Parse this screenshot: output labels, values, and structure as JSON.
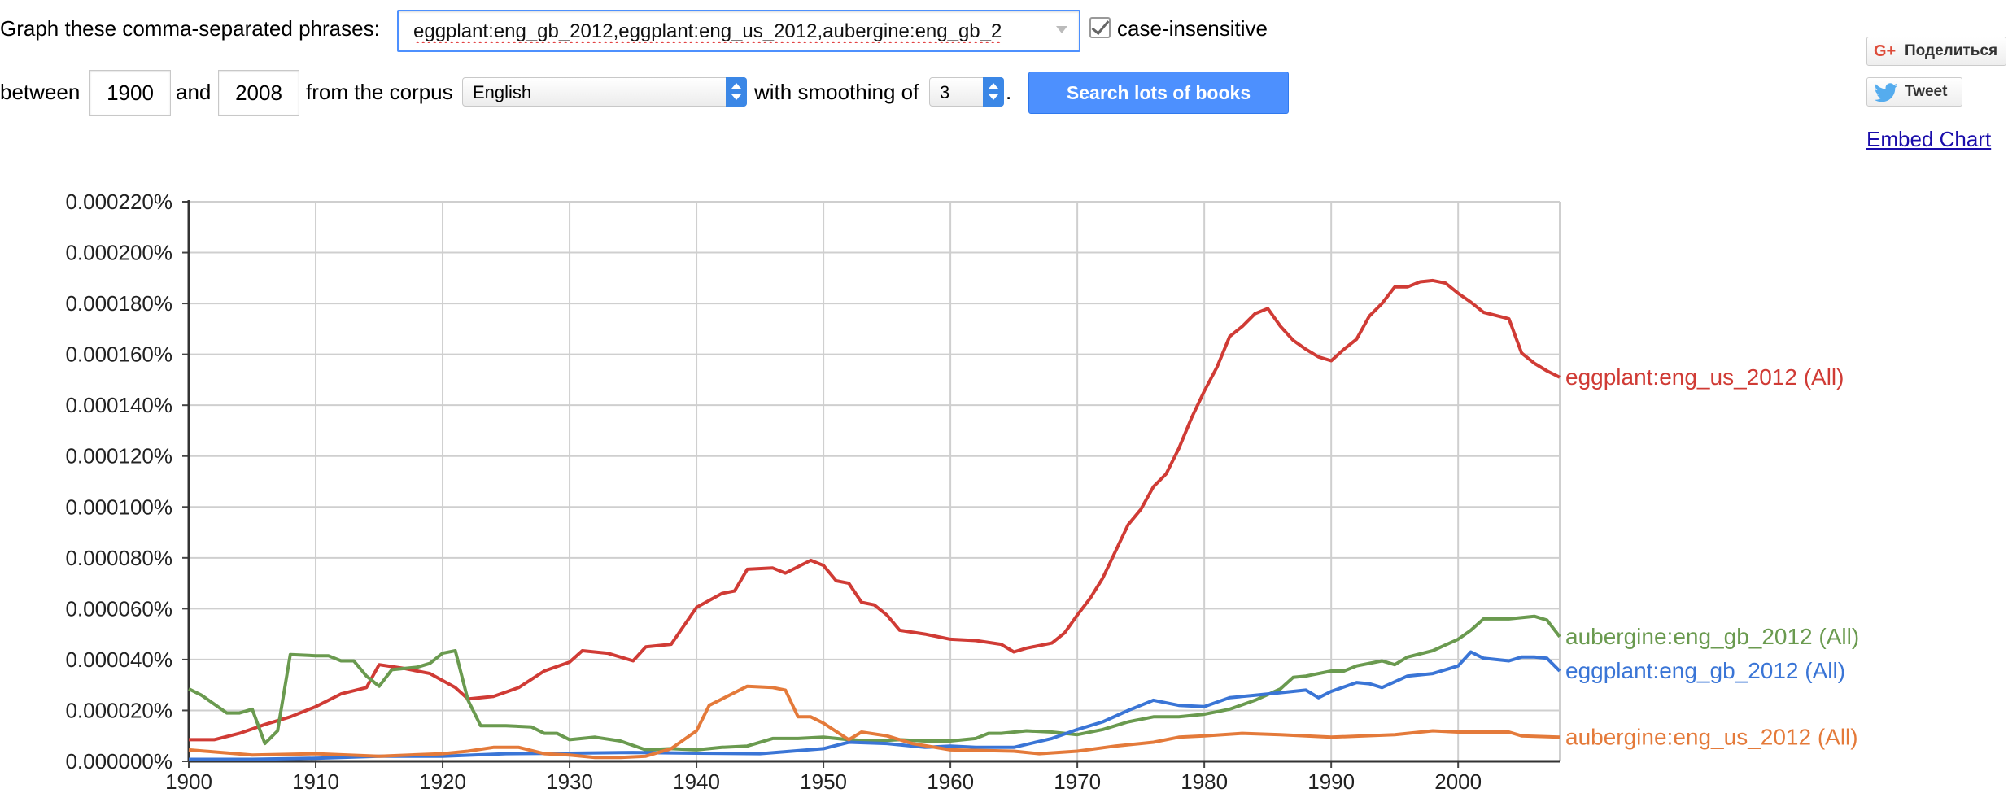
{
  "form": {
    "graph_label": "Graph these comma-separated phrases:",
    "phrases_value": "eggplant:eng_gb_2012,eggplant:eng_us_2012,aubergine:eng_gb_2",
    "case_insensitive_label": "case-insensitive",
    "case_insensitive_checked": true,
    "between_label": "between",
    "year_start": "1900",
    "and_label": "and",
    "year_end": "2008",
    "corpus_label": "from the corpus",
    "corpus_value": "English",
    "smoothing_label": "with smoothing of",
    "smoothing_value": "3",
    "period": ".",
    "search_button": "Search lots of books"
  },
  "share": {
    "gplus_icon": "G+",
    "gplus_label": "Поделиться",
    "tweet_label": "Tweet",
    "embed_label": "Embed Chart"
  },
  "colors": {
    "red": "#d03b35",
    "blue": "#3a75d6",
    "green": "#6a9a4f",
    "orange": "#e47a3a",
    "button": "#4d90fe",
    "link": "#1a0dab"
  },
  "chart_data": {
    "type": "line",
    "xlim": [
      1900,
      2008
    ],
    "ylim": [
      0,
      0.00022
    ],
    "x_ticks": [
      "1900",
      "1910",
      "1920",
      "1930",
      "1940",
      "1950",
      "1960",
      "1970",
      "1980",
      "1990",
      "2000"
    ],
    "y_ticks": [
      "0.000000%",
      "0.000020%",
      "0.000040%",
      "0.000060%",
      "0.000080%",
      "0.000100%",
      "0.000120%",
      "0.000140%",
      "0.000160%",
      "0.000180%",
      "0.000200%",
      "0.000220%"
    ],
    "grid": true,
    "legend": "inline-right",
    "series": [
      {
        "name": "eggplant:eng_us_2012 (All)",
        "color": "#d03b35",
        "points": [
          [
            1900,
            8.5e-06
          ],
          [
            1902,
            8.5e-06
          ],
          [
            1904,
            1.1e-05
          ],
          [
            1906,
            1.45e-05
          ],
          [
            1908,
            1.75e-05
          ],
          [
            1910,
            2.15e-05
          ],
          [
            1912,
            2.65e-05
          ],
          [
            1914,
            2.9e-05
          ],
          [
            1915,
            3.8e-05
          ],
          [
            1917,
            3.65e-05
          ],
          [
            1919,
            3.45e-05
          ],
          [
            1921,
            2.9e-05
          ],
          [
            1922,
            2.45e-05
          ],
          [
            1924,
            2.55e-05
          ],
          [
            1926,
            2.9e-05
          ],
          [
            1928,
            3.55e-05
          ],
          [
            1930,
            3.9e-05
          ],
          [
            1931,
            4.35e-05
          ],
          [
            1933,
            4.25e-05
          ],
          [
            1935,
            3.95e-05
          ],
          [
            1936,
            4.5e-05
          ],
          [
            1938,
            4.6e-05
          ],
          [
            1940,
            6.05e-05
          ],
          [
            1942,
            6.6e-05
          ],
          [
            1943,
            6.7e-05
          ],
          [
            1944,
            7.55e-05
          ],
          [
            1946,
            7.6e-05
          ],
          [
            1947,
            7.4e-05
          ],
          [
            1949,
            7.9e-05
          ],
          [
            1950,
            7.7e-05
          ],
          [
            1951,
            7.1e-05
          ],
          [
            1952,
            7e-05
          ],
          [
            1953,
            6.25e-05
          ],
          [
            1954,
            6.15e-05
          ],
          [
            1955,
            5.75e-05
          ],
          [
            1956,
            5.15e-05
          ],
          [
            1958,
            5e-05
          ],
          [
            1960,
            4.8e-05
          ],
          [
            1962,
            4.75e-05
          ],
          [
            1964,
            4.6e-05
          ],
          [
            1965,
            4.3e-05
          ],
          [
            1966,
            4.45e-05
          ],
          [
            1968,
            4.65e-05
          ],
          [
            1969,
            5.05e-05
          ],
          [
            1970,
            5.75e-05
          ],
          [
            1971,
            6.4e-05
          ],
          [
            1972,
            7.2e-05
          ],
          [
            1973,
            8.25e-05
          ],
          [
            1974,
            9.3e-05
          ],
          [
            1975,
            9.9e-05
          ],
          [
            1976,
            0.000108
          ],
          [
            1977,
            0.000113
          ],
          [
            1978,
            0.000123
          ],
          [
            1979,
            0.000135
          ],
          [
            1980,
            0.0001455
          ],
          [
            1981,
            0.000155
          ],
          [
            1982,
            0.000167
          ],
          [
            1983,
            0.000171
          ],
          [
            1984,
            0.000176
          ],
          [
            1985,
            0.000178
          ],
          [
            1986,
            0.000171
          ],
          [
            1987,
            0.0001655
          ],
          [
            1988,
            0.000162
          ],
          [
            1989,
            0.000159
          ],
          [
            1990,
            0.0001575
          ],
          [
            1991,
            0.000162
          ],
          [
            1992,
            0.000166
          ],
          [
            1993,
            0.000175
          ],
          [
            1994,
            0.00018
          ],
          [
            1995,
            0.0001865
          ],
          [
            1996,
            0.0001865
          ],
          [
            1997,
            0.0001885
          ],
          [
            1998,
            0.000189
          ],
          [
            1999,
            0.000188
          ],
          [
            2000,
            0.000184
          ],
          [
            2001,
            0.0001805
          ],
          [
            2002,
            0.0001765
          ],
          [
            2004,
            0.000174
          ],
          [
            2005,
            0.0001605
          ],
          [
            2006,
            0.0001565
          ],
          [
            2007,
            0.0001535
          ],
          [
            2008,
            0.000151
          ]
        ]
      },
      {
        "name": "aubergine:eng_gb_2012 (All)",
        "color": "#6a9a4f",
        "points": [
          [
            1900,
            2.85e-05
          ],
          [
            1901,
            2.6e-05
          ],
          [
            1902,
            2.25e-05
          ],
          [
            1903,
            1.9e-05
          ],
          [
            1904,
            1.9e-05
          ],
          [
            1905,
            2.05e-05
          ],
          [
            1906,
            7e-06
          ],
          [
            1907,
            1.2e-05
          ],
          [
            1908,
            4.2e-05
          ],
          [
            1910,
            4.15e-05
          ],
          [
            1911,
            4.15e-05
          ],
          [
            1912,
            3.95e-05
          ],
          [
            1913,
            3.95e-05
          ],
          [
            1914,
            3.35e-05
          ],
          [
            1915,
            2.95e-05
          ],
          [
            1916,
            3.6e-05
          ],
          [
            1918,
            3.7e-05
          ],
          [
            1919,
            3.85e-05
          ],
          [
            1920,
            4.25e-05
          ],
          [
            1921,
            4.35e-05
          ],
          [
            1922,
            2.4e-05
          ],
          [
            1923,
            1.4e-05
          ],
          [
            1925,
            1.4e-05
          ],
          [
            1927,
            1.35e-05
          ],
          [
            1928,
            1.1e-05
          ],
          [
            1929,
            1.1e-05
          ],
          [
            1930,
            8.5e-06
          ],
          [
            1932,
            9.5e-06
          ],
          [
            1934,
            8e-06
          ],
          [
            1936,
            4.5e-06
          ],
          [
            1938,
            5e-06
          ],
          [
            1940,
            4.5e-06
          ],
          [
            1942,
            5.5e-06
          ],
          [
            1944,
            6e-06
          ],
          [
            1946,
            9e-06
          ],
          [
            1948,
            9e-06
          ],
          [
            1950,
            9.5e-06
          ],
          [
            1952,
            8.5e-06
          ],
          [
            1954,
            8e-06
          ],
          [
            1956,
            8.5e-06
          ],
          [
            1958,
            8e-06
          ],
          [
            1960,
            8e-06
          ],
          [
            1962,
            9e-06
          ],
          [
            1963,
            1.1e-05
          ],
          [
            1964,
            1.1e-05
          ],
          [
            1966,
            1.2e-05
          ],
          [
            1968,
            1.15e-05
          ],
          [
            1970,
            1.05e-05
          ],
          [
            1972,
            1.25e-05
          ],
          [
            1974,
            1.55e-05
          ],
          [
            1976,
            1.75e-05
          ],
          [
            1978,
            1.75e-05
          ],
          [
            1980,
            1.85e-05
          ],
          [
            1982,
            2.05e-05
          ],
          [
            1984,
            2.4e-05
          ],
          [
            1986,
            2.85e-05
          ],
          [
            1987,
            3.3e-05
          ],
          [
            1988,
            3.35e-05
          ],
          [
            1990,
            3.55e-05
          ],
          [
            1991,
            3.55e-05
          ],
          [
            1992,
            3.75e-05
          ],
          [
            1994,
            3.95e-05
          ],
          [
            1995,
            3.8e-05
          ],
          [
            1996,
            4.1e-05
          ],
          [
            1998,
            4.35e-05
          ],
          [
            2000,
            4.8e-05
          ],
          [
            2001,
            5.15e-05
          ],
          [
            2002,
            5.6e-05
          ],
          [
            2004,
            5.6e-05
          ],
          [
            2006,
            5.7e-05
          ],
          [
            2007,
            5.55e-05
          ],
          [
            2008,
            4.9e-05
          ]
        ]
      },
      {
        "name": "eggplant:eng_gb_2012 (All)",
        "color": "#3a75d6",
        "points": [
          [
            1900,
            8e-07
          ],
          [
            1905,
            8e-07
          ],
          [
            1910,
            1.2e-06
          ],
          [
            1915,
            2e-06
          ],
          [
            1920,
            2e-06
          ],
          [
            1925,
            3e-06
          ],
          [
            1930,
            3.2e-06
          ],
          [
            1935,
            3.5e-06
          ],
          [
            1940,
            3.2e-06
          ],
          [
            1945,
            3e-06
          ],
          [
            1950,
            5e-06
          ],
          [
            1952,
            7.5e-06
          ],
          [
            1955,
            7e-06
          ],
          [
            1958,
            5.5e-06
          ],
          [
            1960,
            6e-06
          ],
          [
            1962,
            5.5e-06
          ],
          [
            1965,
            5.5e-06
          ],
          [
            1968,
            9e-06
          ],
          [
            1970,
            1.25e-05
          ],
          [
            1972,
            1.55e-05
          ],
          [
            1974,
            2e-05
          ],
          [
            1976,
            2.4e-05
          ],
          [
            1978,
            2.2e-05
          ],
          [
            1980,
            2.15e-05
          ],
          [
            1982,
            2.5e-05
          ],
          [
            1984,
            2.6e-05
          ],
          [
            1986,
            2.7e-05
          ],
          [
            1988,
            2.8e-05
          ],
          [
            1989,
            2.5e-05
          ],
          [
            1990,
            2.75e-05
          ],
          [
            1992,
            3.1e-05
          ],
          [
            1993,
            3.05e-05
          ],
          [
            1994,
            2.9e-05
          ],
          [
            1996,
            3.35e-05
          ],
          [
            1998,
            3.45e-05
          ],
          [
            2000,
            3.75e-05
          ],
          [
            2001,
            4.3e-05
          ],
          [
            2002,
            4.05e-05
          ],
          [
            2004,
            3.95e-05
          ],
          [
            2005,
            4.1e-05
          ],
          [
            2006,
            4.1e-05
          ],
          [
            2007,
            4.05e-05
          ],
          [
            2008,
            3.55e-05
          ]
        ]
      },
      {
        "name": "aubergine:eng_us_2012 (All)",
        "color": "#e47a3a",
        "points": [
          [
            1900,
            4.5e-06
          ],
          [
            1905,
            2.5e-06
          ],
          [
            1910,
            3e-06
          ],
          [
            1915,
            2e-06
          ],
          [
            1920,
            3e-06
          ],
          [
            1922,
            4e-06
          ],
          [
            1924,
            5.5e-06
          ],
          [
            1926,
            5.5e-06
          ],
          [
            1928,
            3e-06
          ],
          [
            1930,
            2.5e-06
          ],
          [
            1932,
            1.5e-06
          ],
          [
            1934,
            1.5e-06
          ],
          [
            1936,
            2e-06
          ],
          [
            1938,
            5e-06
          ],
          [
            1940,
            1.2e-05
          ],
          [
            1941,
            2.2e-05
          ],
          [
            1942,
            2.45e-05
          ],
          [
            1944,
            2.95e-05
          ],
          [
            1946,
            2.9e-05
          ],
          [
            1947,
            2.8e-05
          ],
          [
            1948,
            1.75e-05
          ],
          [
            1949,
            1.75e-05
          ],
          [
            1950,
            1.5e-05
          ],
          [
            1952,
            8.5e-06
          ],
          [
            1953,
            1.15e-05
          ],
          [
            1955,
            1e-05
          ],
          [
            1957,
            7e-06
          ],
          [
            1960,
            4.5e-06
          ],
          [
            1965,
            4e-06
          ],
          [
            1967,
            3e-06
          ],
          [
            1970,
            4e-06
          ],
          [
            1973,
            6e-06
          ],
          [
            1976,
            7.5e-06
          ],
          [
            1978,
            9.5e-06
          ],
          [
            1980,
            1e-05
          ],
          [
            1983,
            1.1e-05
          ],
          [
            1986,
            1.05e-05
          ],
          [
            1990,
            9.5e-06
          ],
          [
            1995,
            1.05e-05
          ],
          [
            1998,
            1.2e-05
          ],
          [
            2000,
            1.15e-05
          ],
          [
            2004,
            1.15e-05
          ],
          [
            2005,
            1e-05
          ],
          [
            2008,
            9.5e-06
          ]
        ]
      }
    ]
  }
}
